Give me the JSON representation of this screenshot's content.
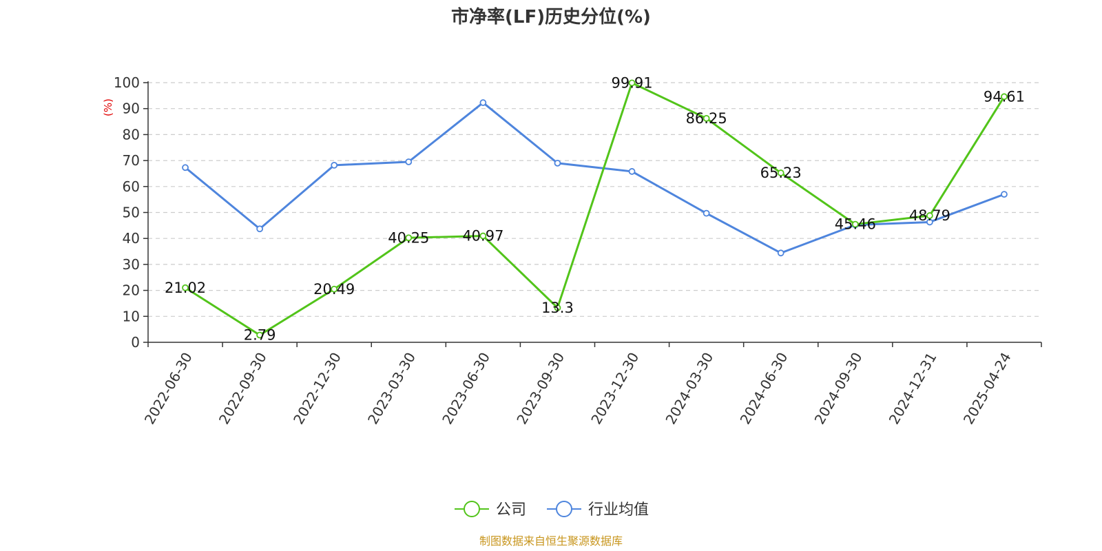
{
  "chart_data": {
    "type": "line",
    "title": "市净率(LF)历史分位(%)",
    "ylabel": "(%)",
    "ylim": [
      0,
      100
    ],
    "yticks": [
      0,
      10,
      20,
      30,
      40,
      50,
      60,
      70,
      80,
      90,
      100
    ],
    "grid": true,
    "legend_position": "bottom-center",
    "categories": [
      "2022-06-30",
      "2022-09-30",
      "2022-12-30",
      "2023-03-30",
      "2023-06-30",
      "2023-09-30",
      "2023-12-30",
      "2024-03-30",
      "2024-06-30",
      "2024-09-30",
      "2024-12-31",
      "2025-04-24"
    ],
    "series": [
      {
        "name": "公司",
        "color": "#52c41a",
        "show_labels": true,
        "values": [
          21.02,
          2.79,
          20.49,
          40.25,
          40.97,
          13.3,
          99.91,
          86.25,
          65.23,
          45.46,
          48.79,
          94.61
        ]
      },
      {
        "name": "行业均值",
        "color": "#4e85dd",
        "show_labels": false,
        "values": [
          67.3,
          43.7,
          68.2,
          69.5,
          92.3,
          69.0,
          65.8,
          49.7,
          34.4,
          45.2,
          46.3,
          57.0
        ]
      }
    ],
    "ylabel_color": "#e00000",
    "grid_color": "#cccccc",
    "axis_color": "#333333"
  },
  "footer": {
    "text": "制图数据来自恒生聚源数据库",
    "color": "#c8961e"
  }
}
